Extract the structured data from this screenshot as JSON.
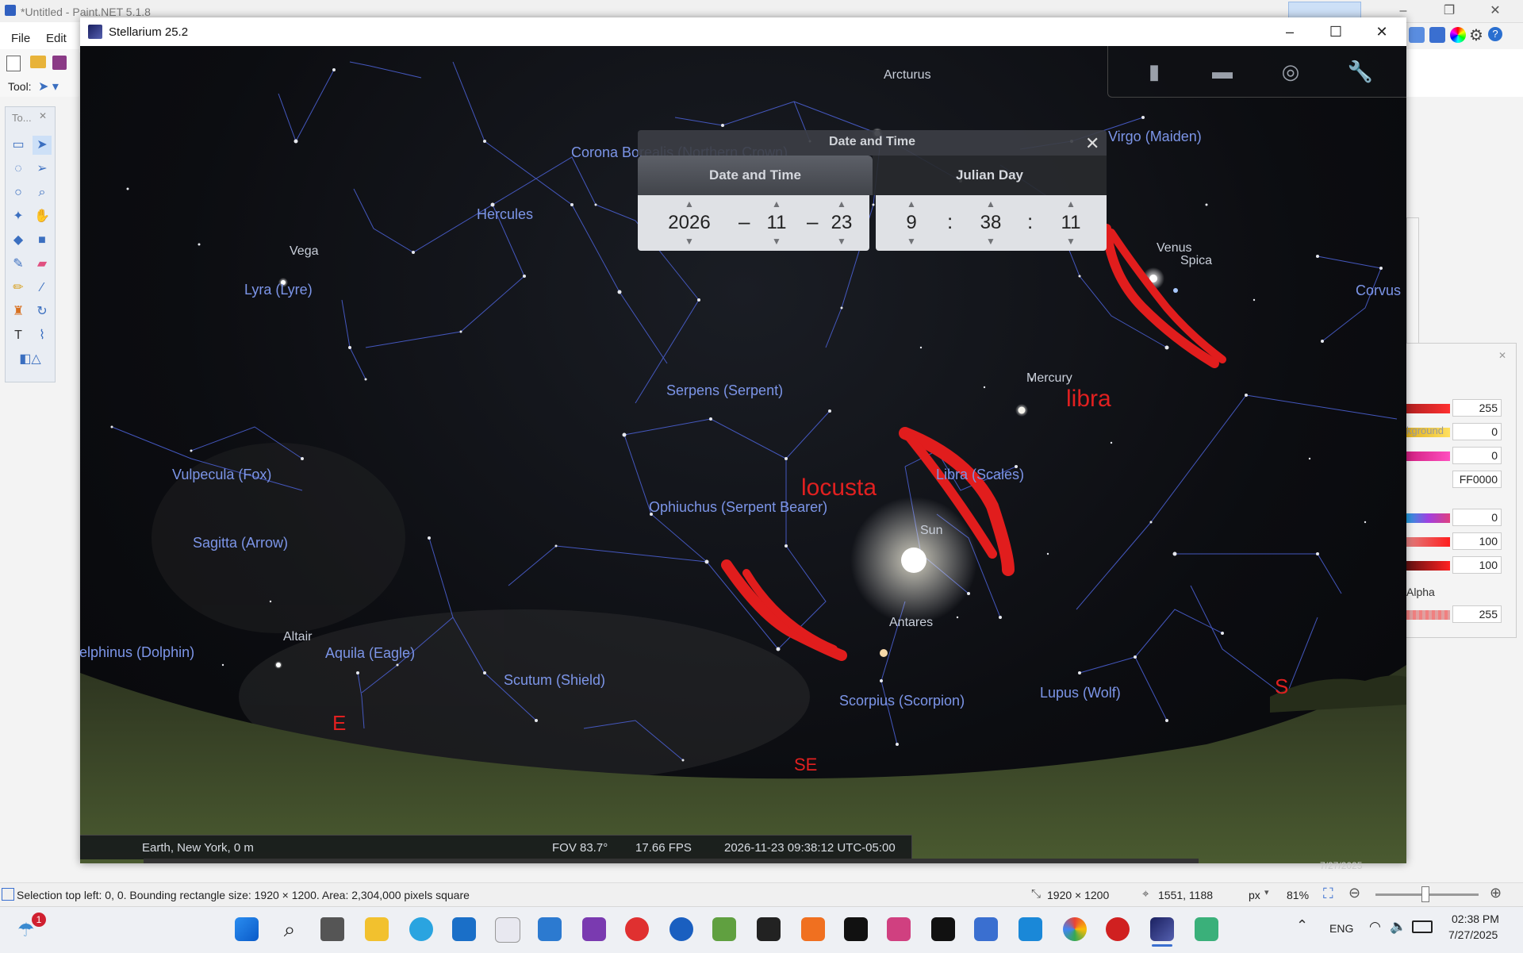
{
  "paintnet": {
    "title": "*Untitled - Paint.NET 5.1.8",
    "menu": [
      "File",
      "Edit"
    ],
    "tool_label": "Tool:",
    "tools_panel_title": "To...",
    "right_panel": {
      "values": [
        "255",
        "0",
        "0",
        "FF0000",
        "0",
        "100",
        "100"
      ],
      "background_label": "kground",
      "alpha_label": "Alpha",
      "alpha_value": "255"
    },
    "status": {
      "selection": "Selection top left: 0, 0. Bounding rectangle size: 1920 × 1200. Area: 2,304,000 pixels square",
      "image_size": "1920 × 1200",
      "cursor": "1551, 1188",
      "unit": "px",
      "zoom": "81%"
    }
  },
  "stellarium": {
    "title": "Stellarium 25.2",
    "constellations": [
      "Corona Borealis (Northern Crown)",
      "Hercules",
      "Lyra (Lyre)",
      "Virgo (Maiden)",
      "Corvus",
      "Serpens (Serpent)",
      "Vulpecula (Fox)",
      "Libra (Scales)",
      "Ophiuchus (Serpent Bearer)",
      "Sagitta (Arrow)",
      "Delphinus (Dolphin)",
      "Aquila (Eagle)",
      "Scutum (Shield)",
      "Scorpius (Scorpion)",
      "Lupus (Wolf)"
    ],
    "stars": [
      "Arcturus",
      "Vega",
      "Venus",
      "Spica",
      "Mercury",
      "Sun",
      "Antares",
      "Altair"
    ],
    "annotations": [
      "libra",
      "locusta",
      "E",
      "SE",
      "S"
    ],
    "status": {
      "location": "Earth, New York, 0 m",
      "fov": "FOV 83.7°",
      "fps": "17.66 FPS",
      "datetime": "2026-11-23 09:38:12 UTC-05:00"
    },
    "date_dialog": {
      "title": "Date and Time",
      "tabs": [
        "Date and Time",
        "Julian Day"
      ],
      "year": "2026",
      "month": "11",
      "day": "23",
      "hour": "9",
      "minute": "38",
      "second": "11",
      "date_sep": "–",
      "time_sep": ":"
    }
  },
  "taskbar": {
    "language": "ENG",
    "time": "02:38 PM",
    "date": "7/27/2025",
    "badge": "1",
    "thumb_date": "7/27/2025"
  },
  "colors": {
    "constellation_line": "#4a5fd0",
    "label": "#7c95e8",
    "annotation": "#e12020",
    "ground": "#3f4a2a"
  }
}
